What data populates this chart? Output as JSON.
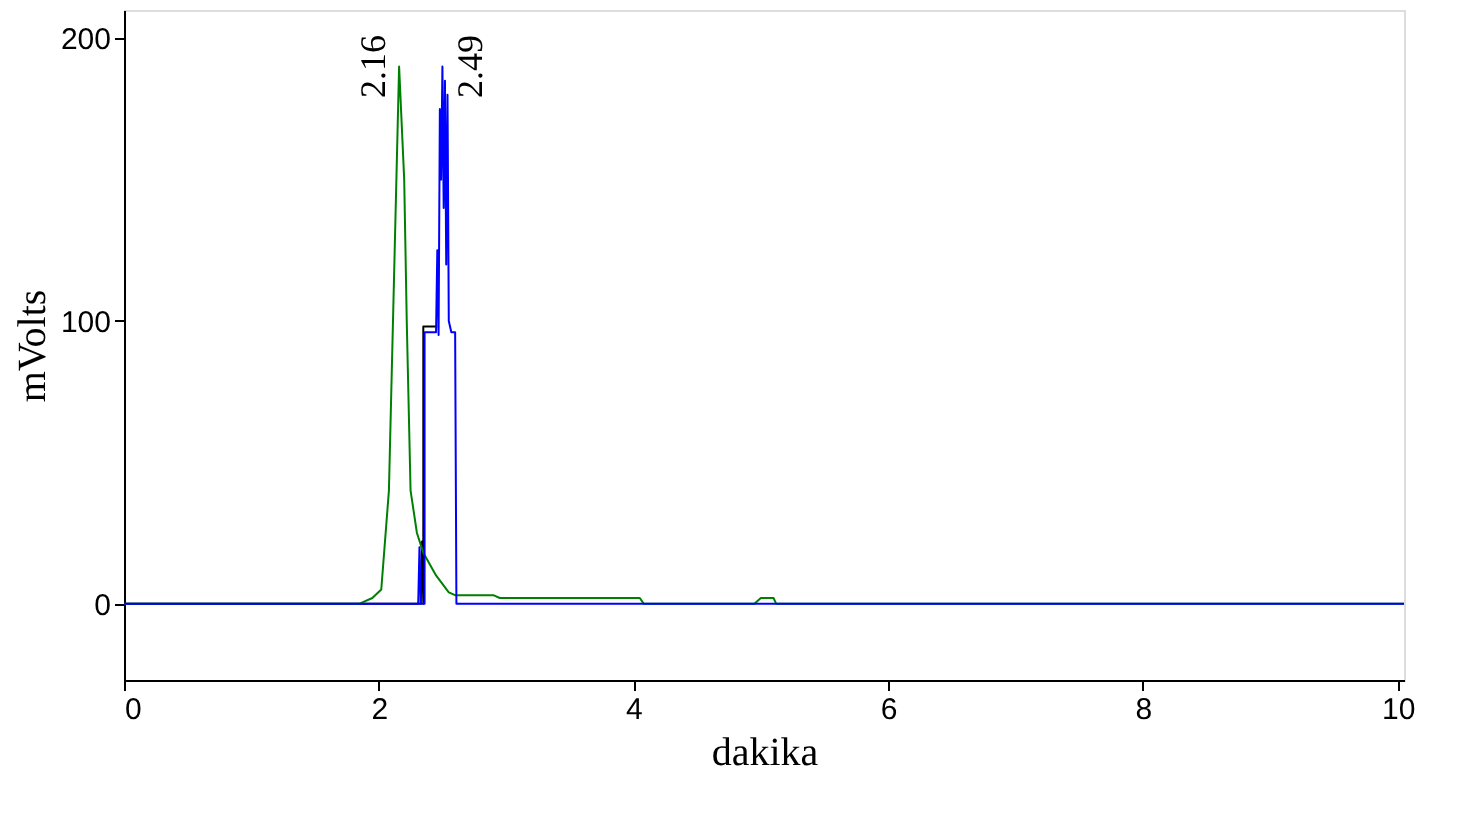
{
  "chart_data": {
    "type": "line",
    "xlabel": "dakika",
    "ylabel": "mVolts",
    "xlim": [
      0,
      10.05
    ],
    "ylim": [
      -27,
      210
    ],
    "xticks": [
      0,
      2,
      4,
      6,
      8,
      10
    ],
    "yticks": [
      0,
      100,
      200
    ],
    "grid": false,
    "marker": "none",
    "line_style": "solid",
    "series": [
      {
        "color": "#000000",
        "x": [
          0,
          2.33,
          2.34,
          2.35,
          2.35,
          2.46
        ],
        "values": [
          0,
          0,
          22,
          0,
          98,
          98
        ]
      },
      {
        "color": "#008000",
        "x": [
          0,
          1.85,
          1.95,
          2.02,
          2.08,
          2.16,
          2.2,
          2.22,
          2.25,
          2.3,
          2.35,
          2.45,
          2.55,
          2.6,
          2.9,
          2.95,
          4.05,
          4.08,
          4.95,
          5.0,
          5.1,
          5.12,
          10.05
        ],
        "values": [
          0,
          0,
          2,
          5,
          40,
          190,
          150,
          100,
          40,
          25,
          18,
          10,
          4,
          3,
          3,
          2,
          2,
          0,
          0,
          2,
          2,
          0,
          0
        ]
      },
      {
        "color": "#0000ff",
        "x": [
          0,
          2.31,
          2.32,
          2.33,
          2.36,
          2.36,
          2.45,
          2.46,
          2.47,
          2.48,
          2.49,
          2.5,
          2.51,
          2.52,
          2.53,
          2.54,
          2.55,
          2.57,
          2.6,
          2.61,
          10.05
        ],
        "values": [
          0,
          0,
          20,
          0,
          0,
          96,
          96,
          125,
          95,
          175,
          150,
          190,
          140,
          185,
          120,
          180,
          100,
          96,
          96,
          0,
          0
        ]
      }
    ],
    "annotations": [
      {
        "text": "2.16",
        "x": 2.16,
        "y": 190
      },
      {
        "text": "2.49",
        "x": 2.5,
        "y": 190
      }
    ]
  }
}
